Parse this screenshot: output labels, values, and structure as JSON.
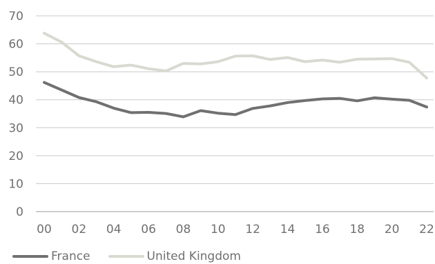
{
  "chart_data": {
    "type": "line",
    "x": [
      "00",
      "01",
      "02",
      "03",
      "04",
      "05",
      "06",
      "07",
      "08",
      "09",
      "10",
      "11",
      "12",
      "13",
      "14",
      "15",
      "16",
      "17",
      "18",
      "19",
      "20",
      "21",
      "22"
    ],
    "x_tick_labels": [
      "00",
      "02",
      "04",
      "06",
      "08",
      "10",
      "12",
      "14",
      "16",
      "18",
      "20",
      "22"
    ],
    "ylim": [
      0,
      70
    ],
    "y_ticks": [
      0,
      10,
      20,
      30,
      40,
      50,
      60,
      70
    ],
    "grid": "horizontal",
    "legend_position": "bottom-left",
    "series": [
      {
        "name": "France",
        "color": "#707070",
        "values": [
          46.2,
          43.5,
          40.8,
          39.3,
          37.0,
          35.4,
          35.5,
          35.1,
          33.9,
          36.1,
          35.2,
          34.7,
          36.9,
          37.8,
          39.0,
          39.7,
          40.3,
          40.5,
          39.6,
          40.7,
          40.2,
          39.8,
          37.4
        ]
      },
      {
        "name": "United Kingdom",
        "color": "#d9d9d1",
        "values": [
          63.8,
          60.6,
          55.7,
          53.6,
          51.8,
          52.4,
          51.1,
          50.3,
          53.0,
          52.8,
          53.6,
          55.6,
          55.7,
          54.4,
          55.1,
          53.6,
          54.2,
          53.4,
          54.5,
          54.6,
          54.7,
          53.4,
          47.8
        ]
      }
    ]
  }
}
